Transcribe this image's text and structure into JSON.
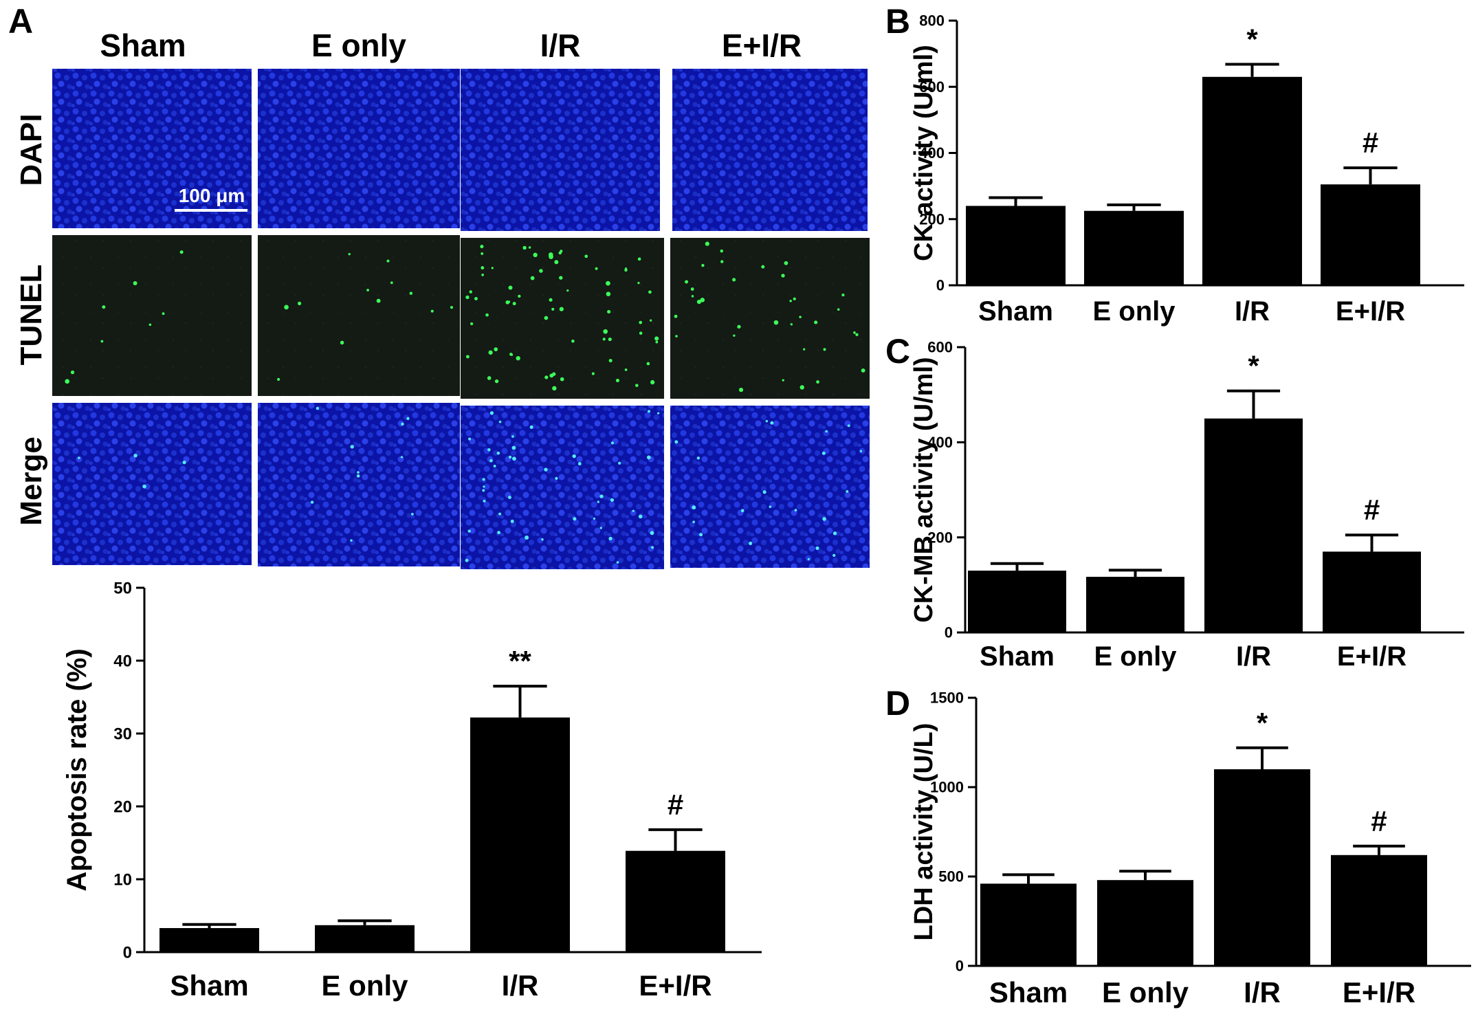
{
  "panel_labels": [
    "A",
    "B",
    "C",
    "D"
  ],
  "micrograph": {
    "columns": [
      "Sham",
      "E only",
      "I/R",
      "E+I/R"
    ],
    "rows": [
      "DAPI",
      "TUNEL",
      "Merge"
    ],
    "scale_bar": "100 μm",
    "colors": {
      "nucleus": "#1a2fd0",
      "background": "#0a12a0",
      "tunel_bg": "#121812",
      "tunel_dot": "#3cff5a"
    }
  },
  "chart_data": [
    {
      "id": "apoptosis",
      "type": "bar",
      "categories": [
        "Sham",
        "E only",
        "I/R",
        "E+I/R"
      ],
      "values": [
        3.3,
        3.7,
        32.2,
        13.9
      ],
      "errors": [
        0.5,
        0.6,
        4.3,
        2.9
      ],
      "annotations": [
        "",
        "",
        "**",
        "#"
      ],
      "ylabel": "Apoptosis rate (%)",
      "ylim": [
        0,
        50
      ],
      "yticks": [
        0,
        10,
        20,
        30,
        40,
        50
      ],
      "bar_color": "#000000"
    },
    {
      "id": "ck",
      "type": "bar",
      "categories": [
        "Sham",
        "E only",
        "I/R",
        "E+I/R"
      ],
      "values": [
        240,
        225,
        630,
        305
      ],
      "errors": [
        25,
        18,
        38,
        50
      ],
      "annotations": [
        "",
        "",
        "*",
        "#"
      ],
      "ylabel": "CK activity (U/ml)",
      "ylim": [
        0,
        800
      ],
      "yticks": [
        0,
        200,
        400,
        600,
        800
      ],
      "bar_color": "#000000"
    },
    {
      "id": "ckmb",
      "type": "bar",
      "categories": [
        "Sham",
        "E only",
        "I/R",
        "E+I/R"
      ],
      "values": [
        130,
        117,
        450,
        170
      ],
      "errors": [
        15,
        14,
        58,
        35
      ],
      "annotations": [
        "",
        "",
        "*",
        "#"
      ],
      "ylabel": "CK-MB activity (U/ml)",
      "ylim": [
        0,
        600
      ],
      "yticks": [
        0,
        200,
        400,
        600
      ],
      "bar_color": "#000000"
    },
    {
      "id": "ldh",
      "type": "bar",
      "categories": [
        "Sham",
        "E only",
        "I/R",
        "E+I/R"
      ],
      "values": [
        460,
        480,
        1100,
        620
      ],
      "errors": [
        50,
        50,
        120,
        50
      ],
      "annotations": [
        "",
        "",
        "*",
        "#"
      ],
      "ylabel": "LDH activity (U/L)",
      "ylim": [
        0,
        1500
      ],
      "yticks": [
        0,
        500,
        1000,
        1500
      ],
      "bar_color": "#000000"
    }
  ]
}
